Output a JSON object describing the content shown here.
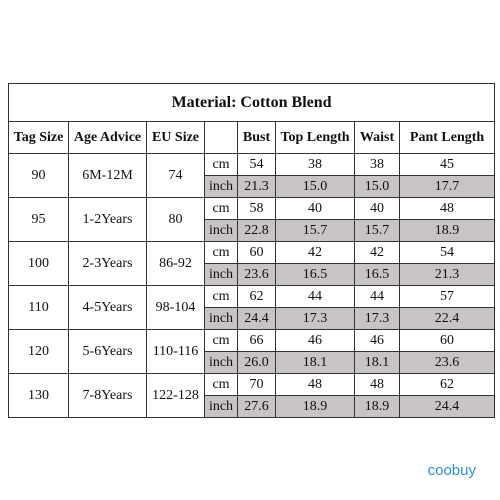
{
  "title": "Material: Cotton Blend",
  "headers": [
    "Tag Size",
    "Age Advice",
    "EU Size",
    "",
    "Bust",
    "Top Length",
    "Waist",
    "Pant Length"
  ],
  "rows": [
    {
      "tag": "90",
      "age": "6M-12M",
      "eu": "74",
      "cm": [
        "54",
        "38",
        "38",
        "45"
      ],
      "inch": [
        "21.3",
        "15.0",
        "15.0",
        "17.7"
      ]
    },
    {
      "tag": "95",
      "age": "1-2Years",
      "eu": "80",
      "cm": [
        "58",
        "40",
        "40",
        "48"
      ],
      "inch": [
        "22.8",
        "15.7",
        "15.7",
        "18.9"
      ]
    },
    {
      "tag": "100",
      "age": "2-3Years",
      "eu": "86-92",
      "cm": [
        "60",
        "42",
        "42",
        "54"
      ],
      "inch": [
        "23.6",
        "16.5",
        "16.5",
        "21.3"
      ]
    },
    {
      "tag": "110",
      "age": "4-5Years",
      "eu": "98-104",
      "cm": [
        "62",
        "44",
        "44",
        "57"
      ],
      "inch": [
        "24.4",
        "17.3",
        "17.3",
        "22.4"
      ]
    },
    {
      "tag": "120",
      "age": "5-6Years",
      "eu": "110-116",
      "cm": [
        "66",
        "46",
        "46",
        "60"
      ],
      "inch": [
        "26.0",
        "18.1",
        "18.1",
        "23.6"
      ]
    },
    {
      "tag": "130",
      "age": "7-8Years",
      "eu": "122-128",
      "cm": [
        "70",
        "48",
        "48",
        "62"
      ],
      "inch": [
        "27.6",
        "18.9",
        "18.9",
        "24.4"
      ]
    }
  ],
  "units": {
    "cm": "cm",
    "inch": "inch"
  },
  "colors": {
    "shaded_row": "#c7c4c3",
    "watermark": "#2f8fcf"
  },
  "watermark": "coobuy"
}
